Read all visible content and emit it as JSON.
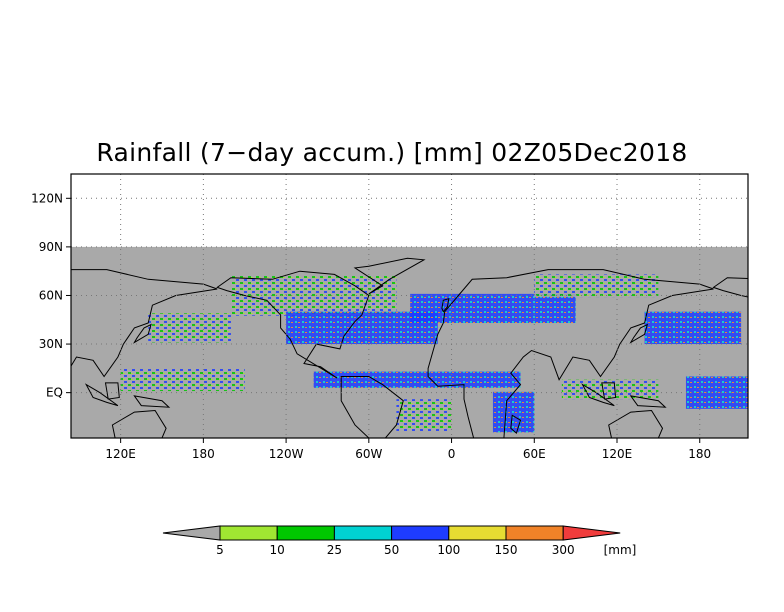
{
  "title": "Rainfall (7−day accum.) [mm] 02Z05Dec2018",
  "y_axis": {
    "ticks": [
      {
        "label": "120N",
        "lat": 120
      },
      {
        "label": "90N",
        "lat": 90
      },
      {
        "label": "60N",
        "lat": 60
      },
      {
        "label": "30N",
        "lat": 30
      },
      {
        "label": "EQ",
        "lat": 0
      }
    ]
  },
  "x_axis": {
    "ticks": [
      {
        "label": "120E",
        "lon": 120
      },
      {
        "label": "180",
        "lon": 180
      },
      {
        "label": "120W",
        "lon": 240
      },
      {
        "label": "60W",
        "lon": 300
      },
      {
        "label": "0",
        "lon": 360
      },
      {
        "label": "60E",
        "lon": 420
      },
      {
        "label": "120E",
        "lon": 480
      },
      {
        "label": "180",
        "lon": 540
      }
    ]
  },
  "map": {
    "lon_range": [
      84,
      575
    ],
    "lat_range": [
      -28,
      135
    ],
    "data_lat_top": 90,
    "no_data_color": "#a9a9a9",
    "grid": true
  },
  "legend": {
    "under_color": "#a9a9a9",
    "over_color": "#f03c3c",
    "bins": [
      {
        "color": "#a0e632"
      },
      {
        "color": "#00c800"
      },
      {
        "color": "#00d2d2"
      },
      {
        "color": "#1e3cff"
      },
      {
        "color": "#e6dc32"
      },
      {
        "color": "#f08228"
      }
    ],
    "labels": [
      "5",
      "10",
      "25",
      "50",
      "100",
      "150",
      "300"
    ],
    "unit": "[mm]"
  }
}
